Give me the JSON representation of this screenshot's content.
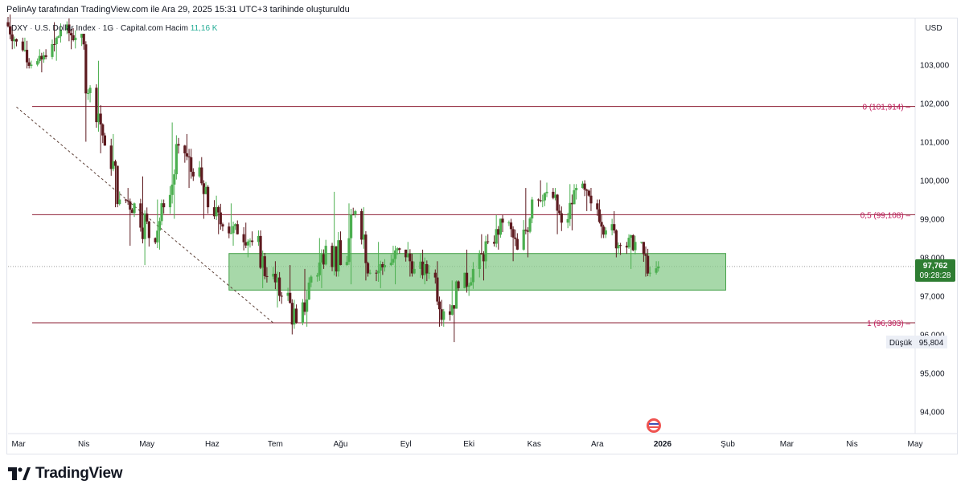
{
  "attribution": "PelinAy tarafından TradingView.com ile Ara 29, 2025 15:31 UTC+3 tarihinde oluşturuldu",
  "legend": {
    "symbol": "DXY",
    "name": "U.S. Dollar Index",
    "interval": "1G",
    "source": "Capital.com",
    "volume_label": "Hacim",
    "volume_value": "11,16 K"
  },
  "currency": "USD",
  "brand": "TradingView",
  "colors": {
    "up": "#4caf50",
    "down": "#5d1a1f",
    "fib_line": "#8e1f35",
    "fib_label": "#c2185b",
    "zone_fill": "#81c784",
    "zone_border": "#43a047",
    "price_tag_bg": "#2e7d32"
  },
  "chart_data": {
    "type": "candlestick",
    "title": "DXY · U.S. Dollar Index · 1G · Capital.com",
    "ylabel": "USD",
    "ylim": [
      93.5,
      104.0
    ],
    "y_ticks": [
      "103,000",
      "102,000",
      "101,000",
      "100,000",
      "99,000",
      "98,000",
      "97,000",
      "96,000",
      "95,000",
      "94,000"
    ],
    "x_ticks": [
      "Mar",
      "Nis",
      "May",
      "Haz",
      "Tem",
      "Ağu",
      "Eyl",
      "Eki",
      "Kas",
      "Ara",
      "2026",
      "Şub",
      "Mar",
      "Nis",
      "May"
    ],
    "x_range": [
      "2025-02-24",
      "2026-05-01"
    ],
    "last_price": "97,762",
    "countdown": "09:28:28",
    "low_label": "Düşük",
    "low_value": "95,804",
    "fib_levels": [
      {
        "label": "0 (101,914)",
        "value": 101.914
      },
      {
        "label": "0,5 (99,108)",
        "value": 99.108
      },
      {
        "label": "1 (96,303)",
        "value": 96.303
      }
    ],
    "zone": {
      "start": "2025-06-09",
      "end": "2026-01-31",
      "low": 97.15,
      "high": 98.1
    },
    "trendline": {
      "from": {
        "date": "2025-02-28",
        "value": 101.9
      },
      "to": {
        "date": "2025-06-30",
        "value": 96.3
      }
    },
    "ohlc_weekly": [
      {
        "t": "2025-02-24",
        "o": 104.1,
        "h": 104.3,
        "l": 103.4,
        "c": 103.6
      },
      {
        "t": "2025-03-03",
        "o": 103.6,
        "h": 103.7,
        "l": 102.9,
        "c": 103.0
      },
      {
        "t": "2025-03-10",
        "o": 103.0,
        "h": 103.4,
        "l": 102.8,
        "c": 103.2
      },
      {
        "t": "2025-03-17",
        "o": 103.2,
        "h": 104.1,
        "l": 103.1,
        "c": 103.9
      },
      {
        "t": "2025-03-24",
        "o": 103.9,
        "h": 104.2,
        "l": 103.4,
        "c": 103.7
      },
      {
        "t": "2025-03-31",
        "o": 103.7,
        "h": 103.8,
        "l": 101.0,
        "c": 102.4
      },
      {
        "t": "2025-04-07",
        "o": 102.4,
        "h": 103.1,
        "l": 100.7,
        "c": 100.9
      },
      {
        "t": "2025-04-14",
        "o": 100.9,
        "h": 101.2,
        "l": 99.3,
        "c": 99.5
      },
      {
        "t": "2025-04-21",
        "o": 99.5,
        "h": 99.8,
        "l": 98.3,
        "c": 99.4
      },
      {
        "t": "2025-04-28",
        "o": 99.4,
        "h": 100.1,
        "l": 97.8,
        "c": 98.5
      },
      {
        "t": "2025-05-05",
        "o": 98.5,
        "h": 99.5,
        "l": 98.2,
        "c": 99.3
      },
      {
        "t": "2025-05-12",
        "o": 99.3,
        "h": 101.5,
        "l": 99.0,
        "c": 100.9
      },
      {
        "t": "2025-05-19",
        "o": 100.9,
        "h": 101.2,
        "l": 99.8,
        "c": 100.1
      },
      {
        "t": "2025-05-26",
        "o": 100.1,
        "h": 100.6,
        "l": 99.0,
        "c": 99.3
      },
      {
        "t": "2025-06-02",
        "o": 99.3,
        "h": 99.6,
        "l": 98.6,
        "c": 98.8
      },
      {
        "t": "2025-06-09",
        "o": 98.8,
        "h": 99.4,
        "l": 98.3,
        "c": 98.6
      },
      {
        "t": "2025-06-16",
        "o": 98.6,
        "h": 98.9,
        "l": 98.0,
        "c": 98.4
      },
      {
        "t": "2025-06-23",
        "o": 98.4,
        "h": 98.7,
        "l": 97.2,
        "c": 97.5
      },
      {
        "t": "2025-06-30",
        "o": 97.5,
        "h": 97.9,
        "l": 96.7,
        "c": 97.0
      },
      {
        "t": "2025-07-07",
        "o": 97.0,
        "h": 97.8,
        "l": 96.0,
        "c": 96.3
      },
      {
        "t": "2025-07-14",
        "o": 96.3,
        "h": 97.7,
        "l": 96.2,
        "c": 97.5
      },
      {
        "t": "2025-07-21",
        "o": 97.5,
        "h": 98.5,
        "l": 97.2,
        "c": 98.3
      },
      {
        "t": "2025-07-28",
        "o": 98.3,
        "h": 99.7,
        "l": 97.5,
        "c": 97.8
      },
      {
        "t": "2025-08-04",
        "o": 97.8,
        "h": 99.4,
        "l": 97.3,
        "c": 99.2
      },
      {
        "t": "2025-08-11",
        "o": 99.2,
        "h": 99.3,
        "l": 97.4,
        "c": 97.6
      },
      {
        "t": "2025-08-18",
        "o": 97.6,
        "h": 98.4,
        "l": 97.2,
        "c": 97.8
      },
      {
        "t": "2025-08-25",
        "o": 97.8,
        "h": 98.3,
        "l": 97.3,
        "c": 98.2
      },
      {
        "t": "2025-09-01",
        "o": 98.2,
        "h": 98.4,
        "l": 97.5,
        "c": 97.7
      },
      {
        "t": "2025-09-08",
        "o": 97.7,
        "h": 98.2,
        "l": 97.3,
        "c": 97.6
      },
      {
        "t": "2025-09-15",
        "o": 97.6,
        "h": 97.9,
        "l": 96.2,
        "c": 96.6
      },
      {
        "t": "2025-09-22",
        "o": 96.6,
        "h": 97.4,
        "l": 95.8,
        "c": 97.2
      },
      {
        "t": "2025-09-29",
        "o": 97.2,
        "h": 98.2,
        "l": 97.0,
        "c": 97.7
      },
      {
        "t": "2025-10-06",
        "o": 97.7,
        "h": 98.6,
        "l": 97.4,
        "c": 98.4
      },
      {
        "t": "2025-10-13",
        "o": 98.4,
        "h": 99.1,
        "l": 98.2,
        "c": 98.9
      },
      {
        "t": "2025-10-20",
        "o": 98.9,
        "h": 99.0,
        "l": 97.9,
        "c": 98.2
      },
      {
        "t": "2025-10-27",
        "o": 98.2,
        "h": 99.8,
        "l": 98.0,
        "c": 99.5
      },
      {
        "t": "2025-11-03",
        "o": 99.5,
        "h": 100.0,
        "l": 99.3,
        "c": 99.7
      },
      {
        "t": "2025-11-10",
        "o": 99.7,
        "h": 99.8,
        "l": 98.6,
        "c": 98.9
      },
      {
        "t": "2025-11-17",
        "o": 98.9,
        "h": 99.9,
        "l": 98.7,
        "c": 99.8
      },
      {
        "t": "2025-11-24",
        "o": 99.8,
        "h": 100.0,
        "l": 99.2,
        "c": 99.4
      },
      {
        "t": "2025-12-01",
        "o": 99.4,
        "h": 99.5,
        "l": 98.5,
        "c": 98.7
      },
      {
        "t": "2025-12-08",
        "o": 98.7,
        "h": 99.2,
        "l": 98.0,
        "c": 98.3
      },
      {
        "t": "2025-12-15",
        "o": 98.3,
        "h": 98.6,
        "l": 97.7,
        "c": 98.4
      },
      {
        "t": "2025-12-22",
        "o": 98.4,
        "h": 98.4,
        "l": 97.5,
        "c": 97.6
      },
      {
        "t": "2025-12-29",
        "o": 97.6,
        "h": 97.9,
        "l": 97.5,
        "c": 97.76
      }
    ]
  }
}
